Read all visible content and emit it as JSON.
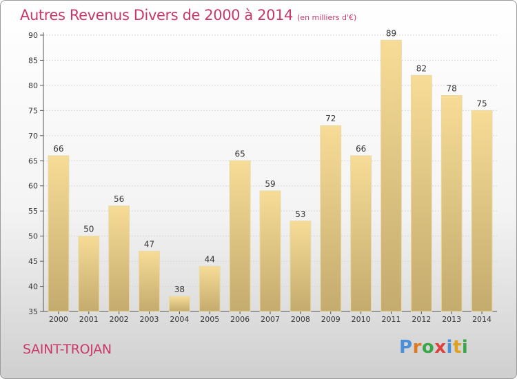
{
  "title": "Autres Revenus Divers de 2000 à 2014",
  "subtitle": "(en milliers d'€)",
  "footer": {
    "city": "SAINT-TROJAN",
    "logo_text": "Proxiti"
  },
  "colors": {
    "title": "#c8386b",
    "bar_top": "#f6dc96",
    "bar_bottom": "#c4ab6e",
    "logo": [
      "#4a90d9",
      "#e07a1f",
      "#3aa64a",
      "#e04040",
      "#4a90d9",
      "#e0a020",
      "#3aa64a"
    ]
  },
  "chart_data": {
    "type": "bar",
    "categories": [
      "2000",
      "2001",
      "2002",
      "2003",
      "2004",
      "2005",
      "2006",
      "2007",
      "2008",
      "2009",
      "2010",
      "2011",
      "2012",
      "2013",
      "2014"
    ],
    "values": [
      66,
      50,
      56,
      47,
      38,
      44,
      65,
      59,
      53,
      72,
      66,
      89,
      82,
      78,
      75
    ],
    "ylim": [
      35,
      90
    ],
    "yticks": [
      35,
      40,
      45,
      50,
      55,
      60,
      65,
      70,
      75,
      80,
      85,
      90
    ],
    "grid": true,
    "xlabel": "",
    "ylabel": ""
  }
}
